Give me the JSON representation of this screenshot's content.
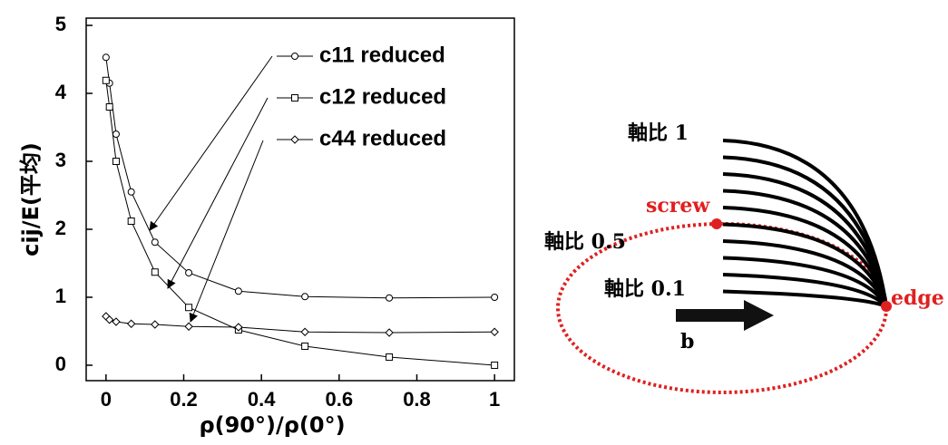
{
  "chart_data": {
    "type": "line",
    "xlabel": "ρ(90°)/ρ(0°)",
    "ylabel": "cij/E(平均)",
    "x": [
      0,
      0.009,
      0.026,
      0.065,
      0.126,
      0.213,
      0.341,
      0.512,
      0.729,
      1
    ],
    "series": [
      {
        "name": "c11 reduced",
        "color": "#000000",
        "marker": "circle",
        "values": [
          4.53,
          4.15,
          3.4,
          2.55,
          1.81,
          1.36,
          1.09,
          1.01,
          0.99,
          1.0
        ]
      },
      {
        "name": "c12 reduced",
        "color": "#000000",
        "marker": "square",
        "values": [
          4.19,
          3.8,
          3.0,
          2.12,
          1.37,
          0.85,
          0.52,
          0.28,
          0.12,
          0.0
        ]
      },
      {
        "name": "c44 reduced",
        "color": "#000000",
        "marker": "diamond",
        "values": [
          0.72,
          0.67,
          0.64,
          0.61,
          0.6,
          0.57,
          0.56,
          0.49,
          0.48,
          0.49
        ]
      }
    ],
    "xlim": [
      -0.051,
      1.051
    ],
    "ylim": [
      -0.227,
      5.107
    ],
    "xticks": [
      0,
      0.2,
      0.4,
      0.6,
      0.8,
      1
    ],
    "yticks": [
      0,
      1,
      2,
      3,
      4,
      5
    ],
    "grid": false
  },
  "diagram": {
    "labels": {
      "ratio_1": "軸比 1",
      "screw": "screw",
      "ratio_05": "軸比 0.5",
      "ratio_01": "軸比 0.1",
      "edge": "edge",
      "burgers": "b"
    }
  }
}
